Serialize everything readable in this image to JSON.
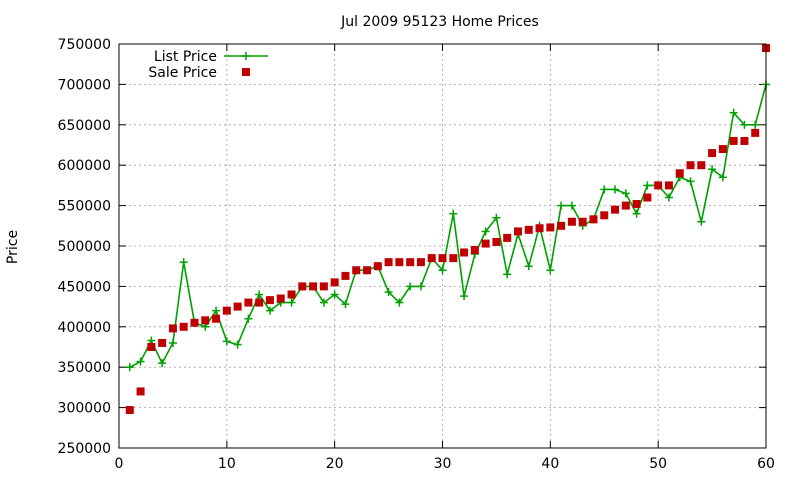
{
  "chart_data": {
    "type": "line",
    "title": "Jul 2009 95123 Home Prices",
    "xlabel": "",
    "ylabel": "Price",
    "xlim": [
      0,
      60
    ],
    "ylim": [
      250000,
      750000
    ],
    "xticks": [
      0,
      10,
      20,
      30,
      40,
      50,
      60
    ],
    "yticks": [
      250000,
      300000,
      350000,
      400000,
      450000,
      500000,
      550000,
      600000,
      650000,
      700000,
      750000
    ],
    "grid": true,
    "legend_position": "top-left",
    "series": [
      {
        "name": "List Price",
        "style": "line+cross",
        "color": "#00a000",
        "x": [
          1,
          2,
          3,
          4,
          5,
          6,
          7,
          8,
          9,
          10,
          11,
          12,
          13,
          14,
          15,
          16,
          17,
          18,
          19,
          20,
          21,
          22,
          23,
          24,
          25,
          26,
          27,
          28,
          29,
          30,
          31,
          32,
          33,
          34,
          35,
          36,
          37,
          38,
          39,
          40,
          41,
          42,
          43,
          44,
          45,
          46,
          47,
          48,
          49,
          50,
          51,
          52,
          53,
          54,
          55,
          56,
          57,
          58,
          59,
          60
        ],
        "y": [
          350000,
          357000,
          383000,
          355000,
          380000,
          480000,
          405000,
          400000,
          420000,
          382000,
          378000,
          410000,
          440000,
          420000,
          430000,
          430000,
          450000,
          450000,
          430000,
          440000,
          428000,
          470000,
          470000,
          475000,
          443000,
          430000,
          450000,
          450000,
          485000,
          470000,
          540000,
          438000,
          490000,
          518000,
          535000,
          465000,
          515000,
          475000,
          525000,
          470000,
          550000,
          550000,
          525000,
          533000,
          570000,
          570000,
          565000,
          540000,
          575000,
          575000,
          560000,
          585000,
          580000,
          530000,
          595000,
          585000,
          665000,
          650000,
          650000,
          700000
        ]
      },
      {
        "name": "Sale Price",
        "style": "square",
        "color": "#c00000",
        "x": [
          1,
          2,
          3,
          4,
          5,
          6,
          7,
          8,
          9,
          10,
          11,
          12,
          13,
          14,
          15,
          16,
          17,
          18,
          19,
          20,
          21,
          22,
          23,
          24,
          25,
          26,
          27,
          28,
          29,
          30,
          31,
          32,
          33,
          34,
          35,
          36,
          37,
          38,
          39,
          40,
          41,
          42,
          43,
          44,
          45,
          46,
          47,
          48,
          49,
          50,
          51,
          52,
          53,
          54,
          55,
          56,
          57,
          58,
          59,
          60
        ],
        "y": [
          297000,
          320000,
          375000,
          380000,
          398000,
          400000,
          405000,
          408000,
          410000,
          420000,
          425000,
          430000,
          430000,
          433000,
          435000,
          440000,
          450000,
          450000,
          450000,
          455000,
          463000,
          470000,
          470000,
          475000,
          480000,
          480000,
          480000,
          480000,
          485000,
          485000,
          485000,
          492000,
          495000,
          503000,
          505000,
          510000,
          518000,
          520000,
          522000,
          523000,
          525000,
          530000,
          530000,
          533000,
          538000,
          545000,
          550000,
          552000,
          560000,
          575000,
          575000,
          590000,
          600000,
          600000,
          615000,
          620000,
          630000,
          630000,
          640000,
          745000
        ]
      }
    ]
  }
}
